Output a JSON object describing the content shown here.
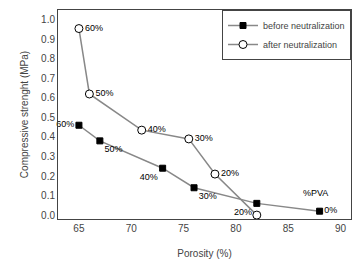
{
  "chart_data": {
    "type": "line",
    "xlabel": "Porosity (%)",
    "ylabel": "Compressive strenght (MPa)",
    "series": [
      {
        "name": "before neutralization",
        "color": "#888888",
        "marker": "square",
        "line_style": "solid",
        "x": [
          65,
          67,
          73,
          76,
          82,
          88
        ],
        "values": [
          0.46,
          0.38,
          0.24,
          0.14,
          0.06,
          0.02
        ],
        "labels": [
          "60%",
          "50%",
          "40%",
          "30%",
          "20%",
          "0%"
        ]
      },
      {
        "name": "after neutralization",
        "color": "#888888",
        "marker": "circle",
        "line_style": "solid",
        "x": [
          65,
          66,
          71,
          75.5,
          78,
          82
        ],
        "values": [
          0.955,
          0.62,
          0.435,
          0.39,
          0.21,
          0.0
        ],
        "labels": [
          "60%",
          "50%",
          "40%",
          "30%",
          "20%",
          null
        ]
      }
    ],
    "annotations": [
      {
        "text": "%PVA",
        "x": 86.2,
        "y": 0.115
      }
    ],
    "xlim": [
      63,
      91
    ],
    "ylim": [
      -0.02,
      1.05
    ],
    "xticks": [
      65,
      70,
      75,
      80,
      85,
      90
    ],
    "yticks": [
      {
        "value": 0.0,
        "label": "0.0"
      },
      0.1,
      0.2,
      0.3,
      0.4,
      0.5,
      0.6,
      0.7,
      0.8,
      0.9,
      {
        "value": 1.0,
        "label": "1.0"
      }
    ],
    "grid": false,
    "legend": "upper right"
  }
}
